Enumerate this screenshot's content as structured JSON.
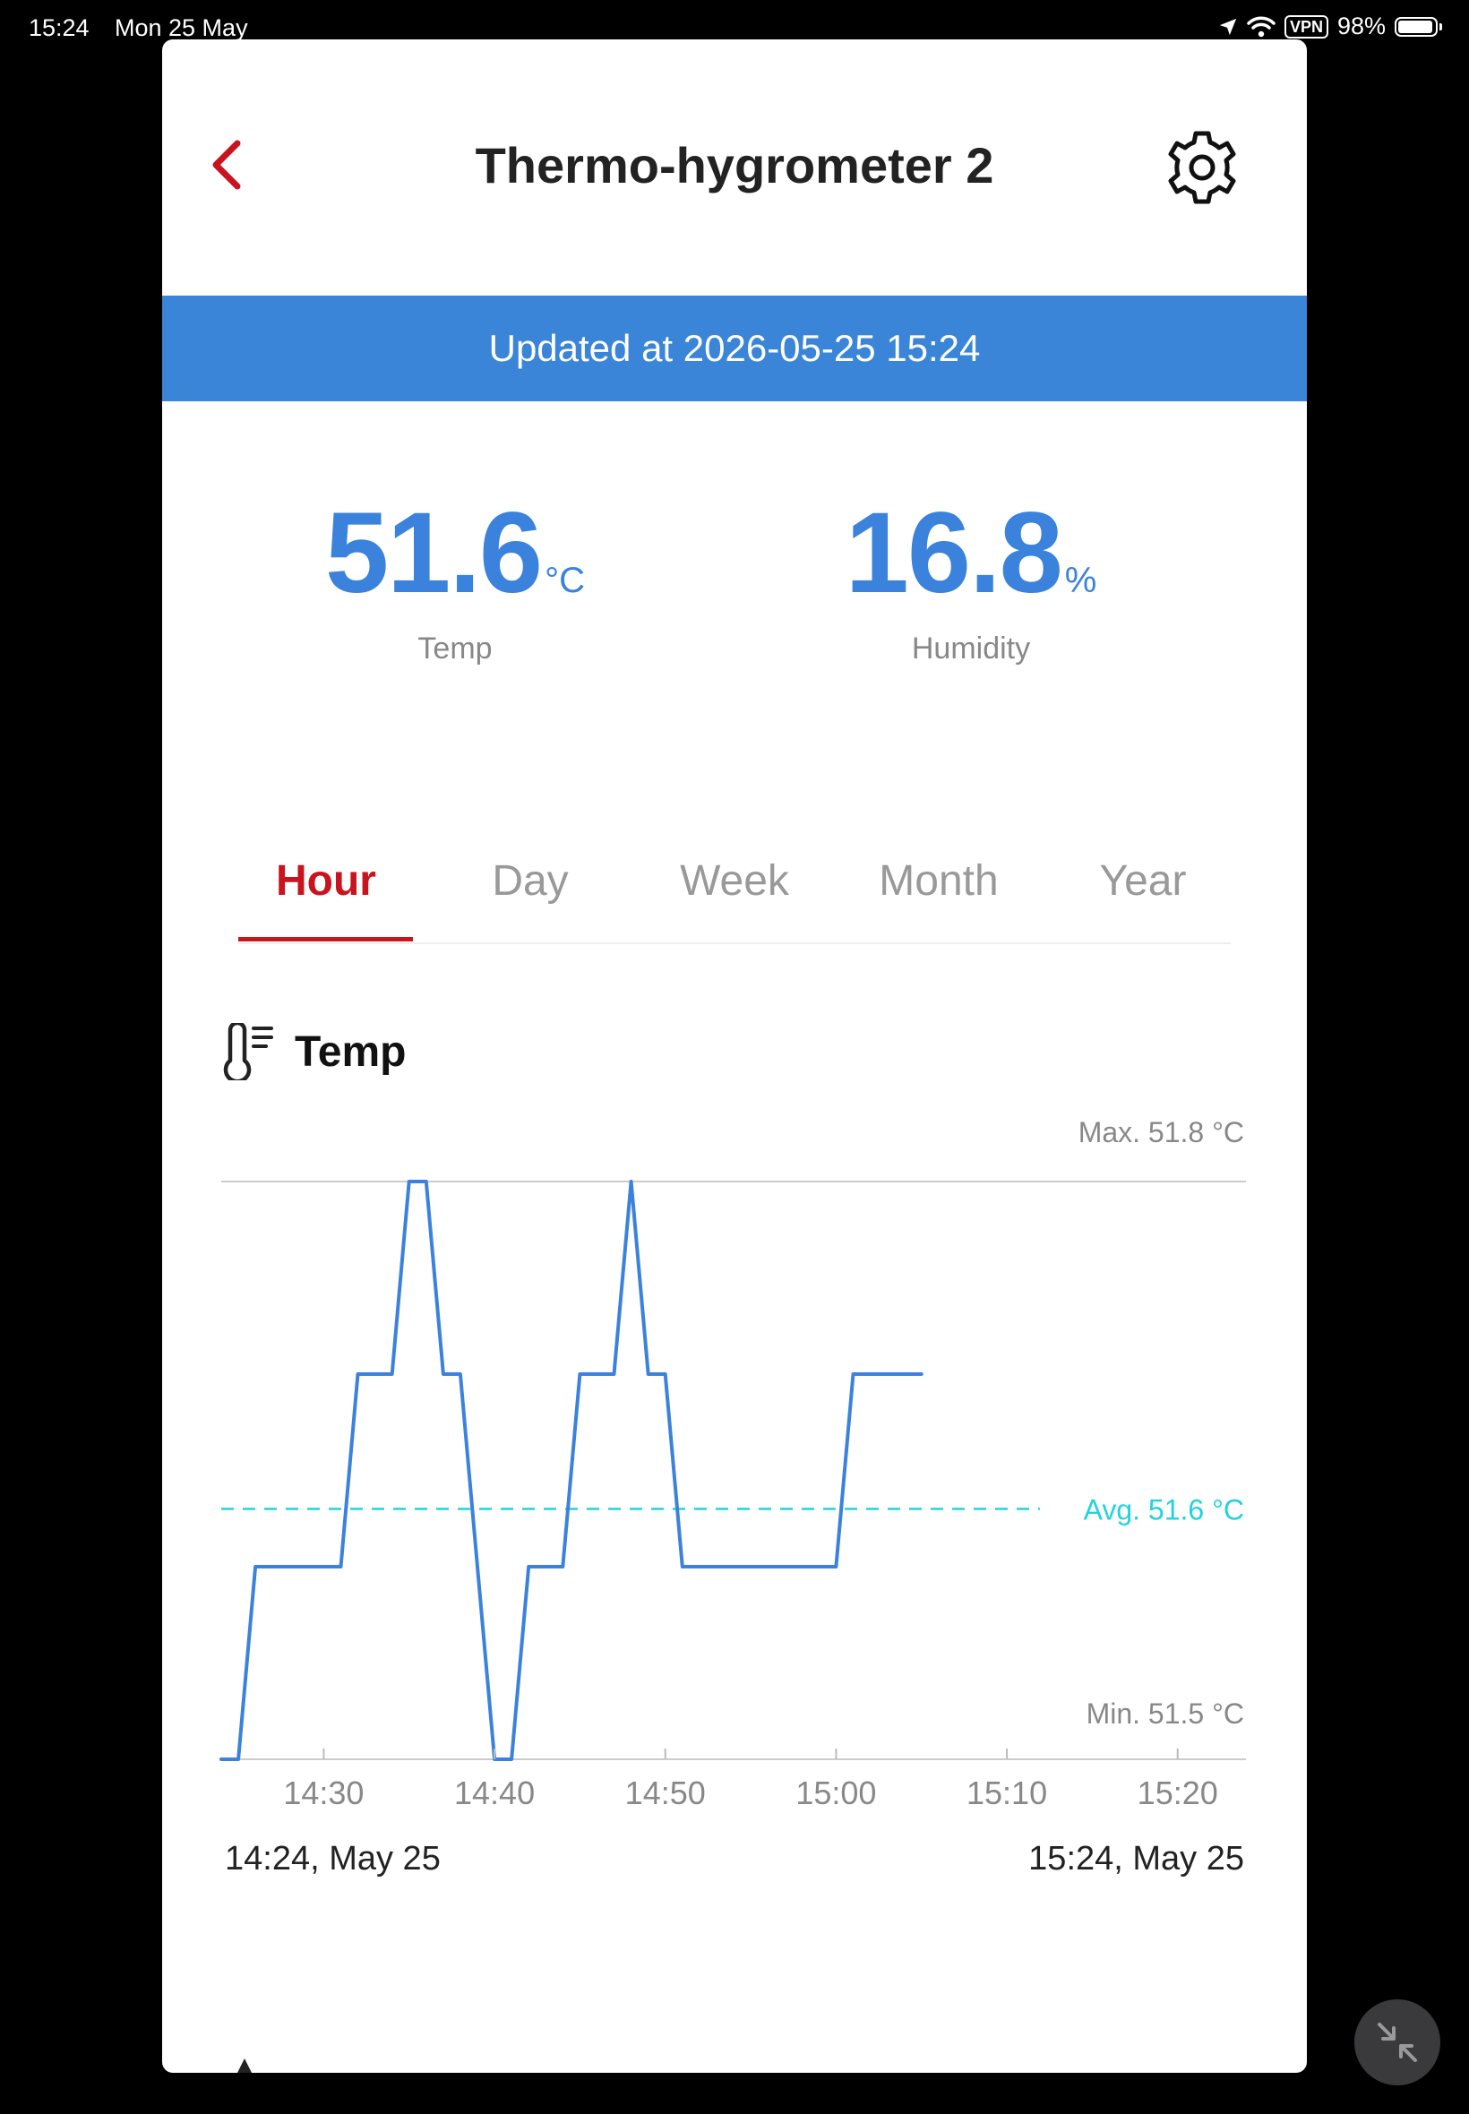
{
  "status_bar": {
    "time": "15:24",
    "date": "Mon 25 May",
    "vpn": "VPN",
    "battery": "98%"
  },
  "header": {
    "title": "Thermo-hygrometer 2",
    "back_icon": "chevron-left-icon",
    "settings_icon": "gear-icon"
  },
  "banner": {
    "text": "Updated at 2026-05-25 15:24",
    "color": "#3b85d8"
  },
  "readings": {
    "temp": {
      "value": "51.6",
      "unit": "°C",
      "label": "Temp"
    },
    "humidity": {
      "value": "16.8",
      "unit": "%",
      "label": "Humidity"
    }
  },
  "tabs": [
    {
      "label": "Hour",
      "active": true
    },
    {
      "label": "Day",
      "active": false
    },
    {
      "label": "Week",
      "active": false
    },
    {
      "label": "Month",
      "active": false
    },
    {
      "label": "Year",
      "active": false
    }
  ],
  "temp_section": {
    "title": "Temp",
    "icon": "thermometer-icon"
  },
  "chart_data": {
    "type": "line",
    "series": [
      {
        "values_x_minutes": [
          "14:24",
          "14:25",
          "14:26",
          "14:31",
          "14:32",
          "14:34",
          "14:35",
          "14:36",
          "14:37",
          "14:38",
          "14:39",
          "14:40",
          "14:41",
          "14:42",
          "14:43",
          "14:44",
          "14:45",
          "14:46",
          "14:47",
          "14:48",
          "14:49",
          "14:50",
          "14:51",
          "14:52",
          "14:53",
          "14:54",
          "14:55",
          "14:56",
          "14:57",
          "15:00",
          "15:01",
          "15:05"
        ],
        "values": [
          51.5,
          51.5,
          51.6,
          51.6,
          51.7,
          51.7,
          51.8,
          51.8,
          51.7,
          51.7,
          51.6,
          51.5,
          51.5,
          51.6,
          51.6,
          51.6,
          51.7,
          51.7,
          51.7,
          51.8,
          51.7,
          51.7,
          51.6,
          51.6,
          51.6,
          51.6,
          51.6,
          51.6,
          51.6,
          51.6,
          51.7,
          51.7
        ]
      }
    ],
    "max_label": "Max. 51.8 °C",
    "avg_label": "Avg. 51.6 °C",
    "min_label": "Min. 51.5 °C",
    "max": 51.8,
    "avg": 51.63,
    "min": 51.5,
    "x_ticks": [
      "14:30",
      "14:40",
      "14:50",
      "15:00",
      "15:10",
      "15:20"
    ],
    "x_range": [
      "14:24",
      "15:24"
    ],
    "line_color": "#3b82dd",
    "avg_color": "#22d3de"
  },
  "range": {
    "start": "14:24, May 25",
    "end": "15:24, May 25"
  }
}
